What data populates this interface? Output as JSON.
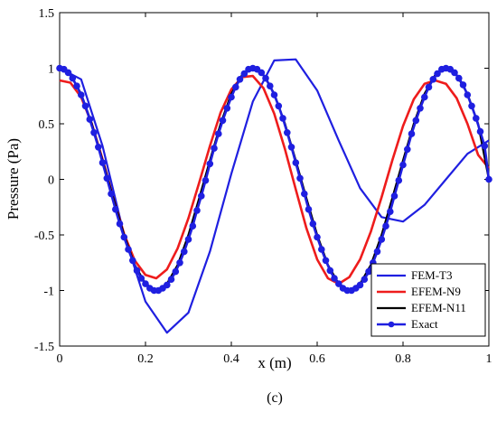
{
  "chart_data": {
    "type": "line",
    "xlabel": "x (m)",
    "ylabel": "Pressure (Pa)",
    "caption": "(c)",
    "xlim": [
      0,
      1
    ],
    "ylim": [
      -1.5,
      1.5
    ],
    "xticks": [
      "0",
      "0.2",
      "0.4",
      "0.6",
      "0.8",
      "1"
    ],
    "yticks": [
      "1.5",
      "1",
      "0.5",
      "0",
      "-0.5",
      "-1",
      "-1.5"
    ],
    "legend_position": "bottom-right",
    "series": [
      {
        "name": "FEM-T3",
        "color": "#1f1fe0",
        "marker": "none",
        "x": [
          0,
          0.05,
          0.1,
          0.15,
          0.2,
          0.25,
          0.3,
          0.35,
          0.4,
          0.45,
          0.5,
          0.55,
          0.6,
          0.65,
          0.7,
          0.75,
          0.8,
          0.85,
          0.9,
          0.95,
          1.0
        ],
        "y": [
          1.0,
          0.9,
          0.3,
          -0.5,
          -1.1,
          -1.38,
          -1.2,
          -0.65,
          0.05,
          0.7,
          1.07,
          1.08,
          0.8,
          0.35,
          -0.08,
          -0.34,
          -0.38,
          -0.23,
          0.0,
          0.23,
          0.35
        ]
      },
      {
        "name": "EFEM-N9",
        "color": "#ee1c1c",
        "marker": "none",
        "x": [
          0,
          0.025,
          0.05,
          0.075,
          0.1,
          0.125,
          0.15,
          0.175,
          0.2,
          0.225,
          0.25,
          0.275,
          0.3,
          0.325,
          0.35,
          0.375,
          0.4,
          0.425,
          0.45,
          0.475,
          0.5,
          0.525,
          0.55,
          0.575,
          0.6,
          0.625,
          0.65,
          0.675,
          0.7,
          0.725,
          0.75,
          0.775,
          0.8,
          0.825,
          0.85,
          0.875,
          0.9,
          0.925,
          0.95,
          0.975,
          1.0
        ],
        "y": [
          0.89,
          0.87,
          0.74,
          0.5,
          0.18,
          -0.17,
          -0.49,
          -0.73,
          -0.86,
          -0.89,
          -0.81,
          -0.62,
          -0.35,
          -0.03,
          0.3,
          0.6,
          0.81,
          0.92,
          0.93,
          0.82,
          0.59,
          0.27,
          -0.09,
          -0.44,
          -0.72,
          -0.89,
          -0.94,
          -0.88,
          -0.72,
          -0.47,
          -0.16,
          0.17,
          0.48,
          0.72,
          0.86,
          0.89,
          0.86,
          0.73,
          0.5,
          0.22,
          0.1
        ]
      },
      {
        "name": "EFEM-N11",
        "color": "#000000",
        "marker": "none",
        "x": [
          0,
          0.025,
          0.05,
          0.075,
          0.1,
          0.125,
          0.15,
          0.175,
          0.2,
          0.225,
          0.25,
          0.275,
          0.3,
          0.325,
          0.35,
          0.375,
          0.4,
          0.425,
          0.45,
          0.475,
          0.5,
          0.525,
          0.55,
          0.575,
          0.6,
          0.625,
          0.65,
          0.675,
          0.7,
          0.725,
          0.75,
          0.775,
          0.8,
          0.825,
          0.85,
          0.875,
          0.9,
          0.925,
          0.95,
          0.975,
          1.0
        ],
        "y": [
          1.0,
          0.94,
          0.77,
          0.5,
          0.17,
          -0.17,
          -0.5,
          -0.77,
          -0.94,
          -1.0,
          -0.94,
          -0.77,
          -0.5,
          -0.17,
          0.17,
          0.5,
          0.77,
          0.94,
          1.0,
          0.94,
          0.77,
          0.5,
          0.17,
          -0.17,
          -0.5,
          -0.77,
          -0.94,
          -1.0,
          -0.94,
          -0.77,
          -0.5,
          -0.17,
          0.17,
          0.5,
          0.77,
          0.94,
          1.0,
          0.94,
          0.77,
          0.5,
          0.0
        ]
      },
      {
        "name": "Exact",
        "color": "#1f1fe0",
        "marker": "circle",
        "formula_samples": 101,
        "x": [
          0,
          0.01,
          0.02,
          0.03,
          0.04,
          0.05,
          0.06,
          0.07,
          0.08,
          0.09,
          0.1,
          0.11,
          0.12,
          0.13,
          0.14,
          0.15,
          0.16,
          0.17,
          0.18,
          0.19,
          0.2,
          0.21,
          0.22,
          0.23,
          0.24,
          0.25,
          0.26,
          0.27,
          0.28,
          0.29,
          0.3,
          0.31,
          0.32,
          0.33,
          0.34,
          0.35,
          0.36,
          0.37,
          0.38,
          0.39,
          0.4,
          0.41,
          0.42,
          0.43,
          0.44,
          0.45,
          0.46,
          0.47,
          0.48,
          0.49,
          0.5,
          0.51,
          0.52,
          0.53,
          0.54,
          0.55,
          0.56,
          0.57,
          0.58,
          0.59,
          0.6,
          0.61,
          0.62,
          0.63,
          0.64,
          0.65,
          0.66,
          0.67,
          0.68,
          0.69,
          0.7,
          0.71,
          0.72,
          0.73,
          0.74,
          0.75,
          0.76,
          0.77,
          0.78,
          0.79,
          0.8,
          0.81,
          0.82,
          0.83,
          0.84,
          0.85,
          0.86,
          0.87,
          0.88,
          0.89,
          0.9,
          0.91,
          0.92,
          0.93,
          0.94,
          0.95,
          0.96,
          0.97,
          0.98,
          0.99,
          1.0
        ],
        "y": [
          1.0,
          0.99,
          0.96,
          0.91,
          0.84,
          0.76,
          0.66,
          0.54,
          0.42,
          0.29,
          0.15,
          0.01,
          -0.13,
          -0.27,
          -0.4,
          -0.52,
          -0.63,
          -0.73,
          -0.82,
          -0.89,
          -0.94,
          -0.98,
          -1.0,
          -1.0,
          -0.98,
          -0.95,
          -0.9,
          -0.83,
          -0.75,
          -0.65,
          -0.54,
          -0.42,
          -0.28,
          -0.15,
          -0.01,
          0.14,
          0.28,
          0.41,
          0.53,
          0.64,
          0.74,
          0.83,
          0.9,
          0.95,
          0.99,
          1.0,
          0.99,
          0.96,
          0.91,
          0.84,
          0.76,
          0.66,
          0.55,
          0.42,
          0.29,
          0.15,
          0.01,
          -0.13,
          -0.27,
          -0.4,
          -0.52,
          -0.63,
          -0.73,
          -0.82,
          -0.89,
          -0.94,
          -0.98,
          -1.0,
          -1.0,
          -0.98,
          -0.95,
          -0.9,
          -0.83,
          -0.75,
          -0.65,
          -0.54,
          -0.42,
          -0.29,
          -0.15,
          -0.01,
          0.13,
          0.27,
          0.41,
          0.53,
          0.64,
          0.74,
          0.83,
          0.9,
          0.95,
          0.99,
          1.0,
          0.99,
          0.96,
          0.91,
          0.85,
          0.76,
          0.66,
          0.55,
          0.43,
          0.3,
          0.0
        ]
      }
    ]
  }
}
